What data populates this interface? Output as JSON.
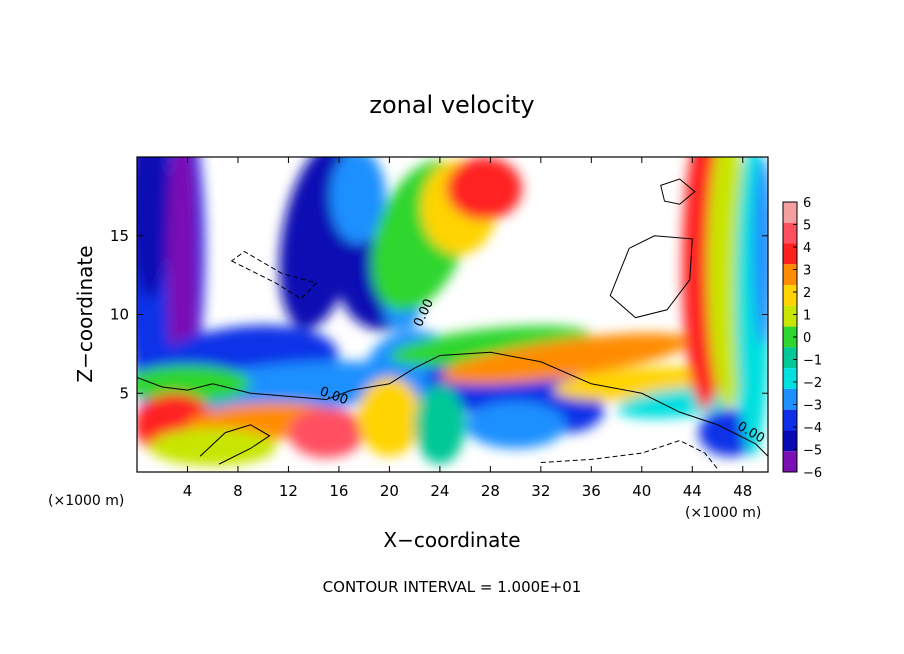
{
  "chart_data": {
    "type": "heatmap",
    "title": "zonal velocity",
    "xlabel": "X−coordinate",
    "ylabel": "Z−coordinate",
    "x_unit_label": "(×1000 m)",
    "y_unit_label": "(×1000 m)",
    "xlim": [
      0,
      50
    ],
    "ylim": [
      0,
      20
    ],
    "x_ticks": [
      "4",
      "8",
      "12",
      "16",
      "20",
      "24",
      "28",
      "32",
      "36",
      "40",
      "44",
      "48"
    ],
    "y_ticks": [
      "5",
      "10",
      "15"
    ],
    "contour_label": "0.00",
    "footer": "CONTOUR INTERVAL = 1.000E+01",
    "colorbar": {
      "levels": [
        "6",
        "5",
        "4",
        "3",
        "2",
        "1",
        "0",
        "−1",
        "−2",
        "−3",
        "−4",
        "−5",
        "−6"
      ],
      "colors": [
        "#f4a0a0",
        "#ff5060",
        "#ff2020",
        "#ff8c00",
        "#ffd400",
        "#c8e600",
        "#2ed62e",
        "#00c896",
        "#00e0e0",
        "#1e90ff",
        "#1030e8",
        "#0a0ab4",
        "#7a10b4"
      ]
    }
  }
}
